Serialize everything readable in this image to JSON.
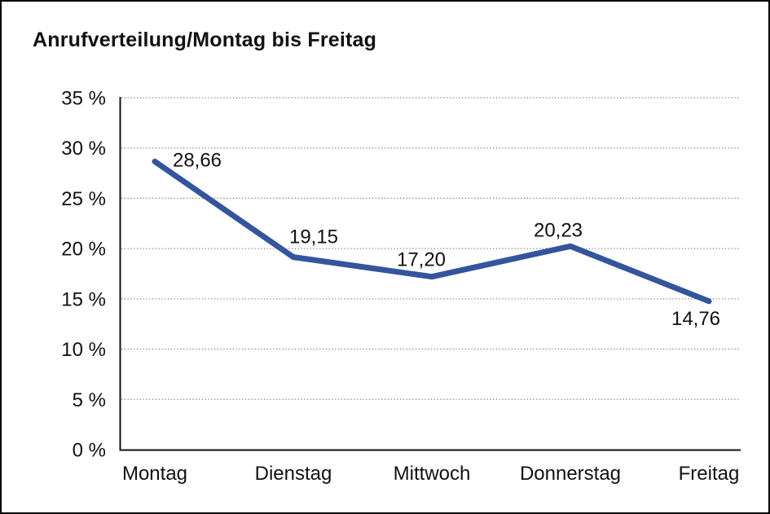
{
  "chart_data": {
    "type": "line",
    "title": "Anrufverteilung/Montag bis Freitag",
    "categories": [
      "Montag",
      "Dienstag",
      "Mittwoch",
      "Donnerstag",
      "Freitag"
    ],
    "series": [
      {
        "name": "Anrufverteilung",
        "values": [
          28.66,
          19.15,
          17.2,
          20.23,
          14.76
        ]
      }
    ],
    "value_labels": [
      "28,66",
      "19,15",
      "17,20",
      "20,23",
      "14,76"
    ],
    "y_ticks": [
      0,
      5,
      10,
      15,
      20,
      25,
      30,
      35
    ],
    "y_tick_labels": [
      "0 %",
      "5 %",
      "10 %",
      "15 %",
      "20 %",
      "25 %",
      "30 %",
      "35 %"
    ],
    "ylim": [
      0,
      35
    ],
    "unit": "%",
    "xlabel": "",
    "ylabel": "",
    "grid": "horizontal-dotted",
    "legend": "none",
    "colors": {
      "line": "#34559E",
      "grid": "#7a7a7a",
      "axis": "#111111",
      "text": "#111111",
      "background": "#ffffff"
    }
  }
}
